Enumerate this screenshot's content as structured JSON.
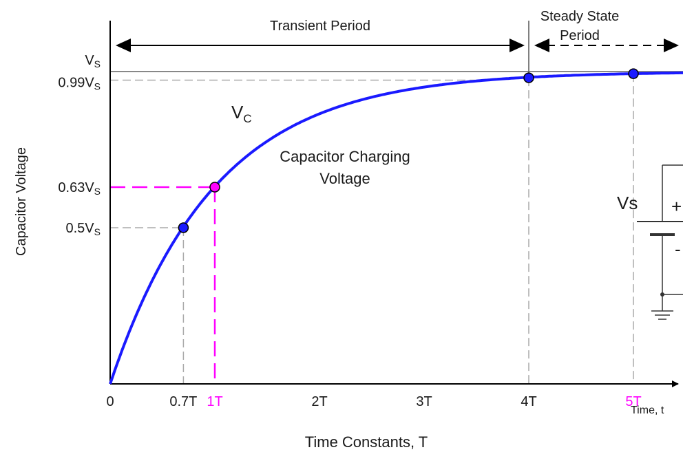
{
  "chart_data": {
    "type": "line",
    "title": "",
    "xlabel": "Time Constants, T",
    "x_end_label": "Time, t",
    "ylabel": "Capacitor Voltage",
    "x_ticks": [
      {
        "value": 0,
        "label": "0",
        "highlight": false
      },
      {
        "value": 0.7,
        "label": "0.7T",
        "highlight": false
      },
      {
        "value": 1,
        "label": "1T",
        "highlight": true
      },
      {
        "value": 2,
        "label": "2T",
        "highlight": false
      },
      {
        "value": 3,
        "label": "3T",
        "highlight": false
      },
      {
        "value": 4,
        "label": "4T",
        "highlight": false
      },
      {
        "value": 5,
        "label": "5T",
        "highlight": true
      }
    ],
    "y_ticks": [
      {
        "value": 1.0,
        "main": "V",
        "sub": "S"
      },
      {
        "value": 0.99,
        "main": "0.99V",
        "sub": "S"
      },
      {
        "value": 0.63,
        "main": "0.63V",
        "sub": "S"
      },
      {
        "value": 0.5,
        "main": "0.5V",
        "sub": "S"
      }
    ],
    "curve_label": {
      "main": "V",
      "sub": "C"
    },
    "curve_caption": [
      "Capacitor Charging",
      "Voltage"
    ],
    "points": [
      {
        "x": 0.7,
        "y": 0.5,
        "highlight": false
      },
      {
        "x": 1,
        "y": 0.63,
        "highlight": true
      },
      {
        "x": 4,
        "y": 0.98,
        "highlight": false
      },
      {
        "x": 5,
        "y": 0.993,
        "highlight": false
      }
    ],
    "periods": [
      {
        "name": "Transient Period",
        "from": 0,
        "to": 4,
        "style": "solid"
      },
      {
        "name_lines": [
          "Steady State",
          "Period"
        ],
        "from": 4,
        "to": 6,
        "style": "dashed"
      }
    ],
    "xlim": [
      0,
      6
    ],
    "ylim": [
      0,
      1
    ],
    "colors": {
      "curve": "#1a1aff",
      "highlight": "#ff00ff",
      "guide": "#aaaaaa",
      "axis": "#000000"
    }
  },
  "circuit": {
    "source_label": "Vs",
    "plus_symbol": "+",
    "minus_symbol": "-"
  }
}
